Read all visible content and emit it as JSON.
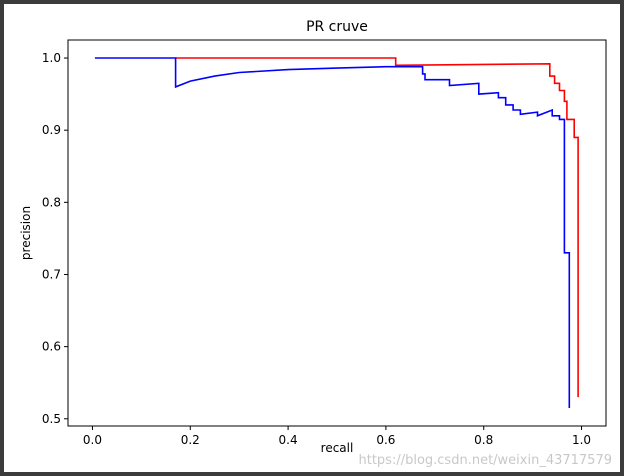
{
  "chart_data": {
    "type": "line",
    "title": "PR cruve",
    "xlabel": "recall",
    "ylabel": "precision",
    "xlim": [
      -0.05,
      1.05
    ],
    "ylim": [
      0.49,
      1.025
    ],
    "xticks": [
      0.0,
      0.2,
      0.4,
      0.6,
      0.8,
      1.0
    ],
    "xtick_labels": [
      "0.0",
      "0.2",
      "0.4",
      "0.6",
      "0.8",
      "1.0"
    ],
    "yticks": [
      0.5,
      0.6,
      0.7,
      0.8,
      0.9,
      1.0
    ],
    "ytick_labels": [
      "0.5",
      "0.6",
      "0.7",
      "0.8",
      "0.9",
      "1.0"
    ],
    "grid": false,
    "series": [
      {
        "color": "#ff0000",
        "points": [
          [
            0.17,
            1.0
          ],
          [
            0.62,
            1.0
          ],
          [
            0.62,
            0.99
          ],
          [
            0.935,
            0.992
          ],
          [
            0.935,
            0.975
          ],
          [
            0.945,
            0.975
          ],
          [
            0.945,
            0.965
          ],
          [
            0.955,
            0.965
          ],
          [
            0.955,
            0.955
          ],
          [
            0.965,
            0.955
          ],
          [
            0.965,
            0.94
          ],
          [
            0.97,
            0.94
          ],
          [
            0.97,
            0.915
          ],
          [
            0.985,
            0.915
          ],
          [
            0.985,
            0.89
          ],
          [
            0.993,
            0.89
          ],
          [
            0.993,
            0.53
          ]
        ]
      },
      {
        "color": "#0000ff",
        "points": [
          [
            0.005,
            1.0
          ],
          [
            0.17,
            1.0
          ],
          [
            0.17,
            0.96
          ],
          [
            0.2,
            0.968
          ],
          [
            0.25,
            0.975
          ],
          [
            0.3,
            0.98
          ],
          [
            0.4,
            0.984
          ],
          [
            0.5,
            0.986
          ],
          [
            0.6,
            0.988
          ],
          [
            0.675,
            0.988
          ],
          [
            0.675,
            0.978
          ],
          [
            0.68,
            0.978
          ],
          [
            0.68,
            0.97
          ],
          [
            0.73,
            0.97
          ],
          [
            0.73,
            0.962
          ],
          [
            0.79,
            0.965
          ],
          [
            0.79,
            0.95
          ],
          [
            0.83,
            0.952
          ],
          [
            0.83,
            0.945
          ],
          [
            0.845,
            0.945
          ],
          [
            0.845,
            0.935
          ],
          [
            0.86,
            0.935
          ],
          [
            0.86,
            0.928
          ],
          [
            0.875,
            0.928
          ],
          [
            0.875,
            0.922
          ],
          [
            0.91,
            0.925
          ],
          [
            0.91,
            0.92
          ],
          [
            0.94,
            0.928
          ],
          [
            0.94,
            0.92
          ],
          [
            0.955,
            0.92
          ],
          [
            0.955,
            0.915
          ],
          [
            0.965,
            0.915
          ],
          [
            0.965,
            0.73
          ],
          [
            0.975,
            0.73
          ],
          [
            0.975,
            0.515
          ]
        ]
      }
    ]
  },
  "watermark": "https://blog.csdn.net/weixin_43717579"
}
